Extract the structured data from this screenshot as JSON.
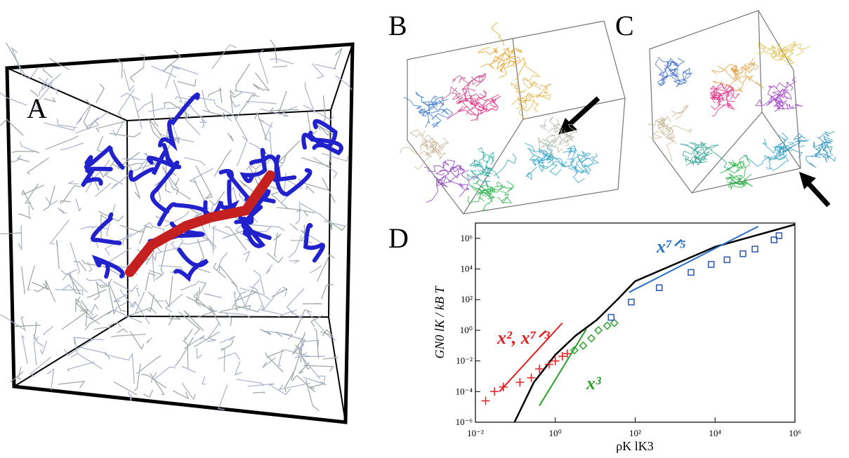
{
  "panel_labels": {
    "a": "A",
    "b": "B",
    "c": "C",
    "d": "D"
  },
  "chart_data": {
    "type": "scatter",
    "x_label": "ρK lK3",
    "y_label": "GN0 lK / kB T",
    "log_x": true,
    "log_y": true,
    "grid": false,
    "xlim": [
      0.01,
      1000000
    ],
    "ylim": [
      1e-06,
      10000000
    ],
    "xticks": [
      {
        "value": 0.01,
        "label": "10⁻²"
      },
      {
        "value": 1,
        "label": "10⁰"
      },
      {
        "value": 100,
        "label": "10²"
      },
      {
        "value": 10000,
        "label": "10⁴"
      },
      {
        "value": 1000000,
        "label": "10⁶"
      }
    ],
    "yticks": [
      {
        "value": 1e-06,
        "label": "10⁻⁶"
      },
      {
        "value": 0.0001,
        "label": "10⁻⁴"
      },
      {
        "value": 0.01,
        "label": "10⁻²"
      },
      {
        "value": 1,
        "label": "10⁰"
      },
      {
        "value": 100,
        "label": "10²"
      },
      {
        "value": 10000,
        "label": "10⁴"
      },
      {
        "value": 1000000,
        "label": "10⁶"
      }
    ],
    "lines": [
      {
        "color": "#000000",
        "x": [
          0.095,
          0.29,
          1,
          3.2,
          11,
          37,
          100,
          630,
          10000,
          1000000
        ],
        "values": [
          1e-06,
          0.0004,
          0.025,
          0.44,
          4.8,
          110,
          1600,
          12600,
          280000,
          8000000
        ]
      },
      {
        "color": "#e02020",
        "x": [
          0.04,
          1.5
        ],
        "values": [
          0.0001,
          3
        ]
      },
      {
        "color": "#2ca02c",
        "x": [
          0.4,
          6
        ],
        "values": [
          1.2e-05,
          1.2
        ]
      },
      {
        "color": "#2a6fc9",
        "x": [
          70,
          120000
        ],
        "values": [
          300,
          6000000
        ]
      }
    ],
    "series": [
      {
        "color": "#e02020",
        "marker": "plus",
        "x": [
          0.018,
          0.03,
          0.05,
          0.13,
          0.25,
          0.4,
          0.7,
          1,
          1.5,
          2
        ],
        "values": [
          2.5e-05,
          0.0001,
          0.0002,
          0.0004,
          0.0008,
          0.003,
          0.006,
          0.01,
          0.02,
          0.03
        ]
      },
      {
        "color": "#2ca02c",
        "marker": "diamond",
        "x": [
          3,
          5,
          8,
          12,
          20,
          30
        ],
        "values": [
          0.05,
          0.1,
          0.3,
          1,
          2,
          3
        ]
      },
      {
        "color": "#2a55b0",
        "marker": "square",
        "x": [
          25,
          80,
          400,
          2500,
          8000,
          20000,
          50000,
          100000,
          300000,
          400000
        ],
        "values": [
          7,
          70,
          600,
          6000,
          20000,
          40000,
          100000,
          200000,
          800000,
          1500000
        ]
      }
    ],
    "annotations": [
      {
        "text": "x⁷ᐟ⁵",
        "color": "#2a6fc9"
      },
      {
        "text": "x², x⁷ᐟ³",
        "color": "#e02020"
      },
      {
        "text": "x³",
        "color": "#2ca02c"
      }
    ]
  }
}
